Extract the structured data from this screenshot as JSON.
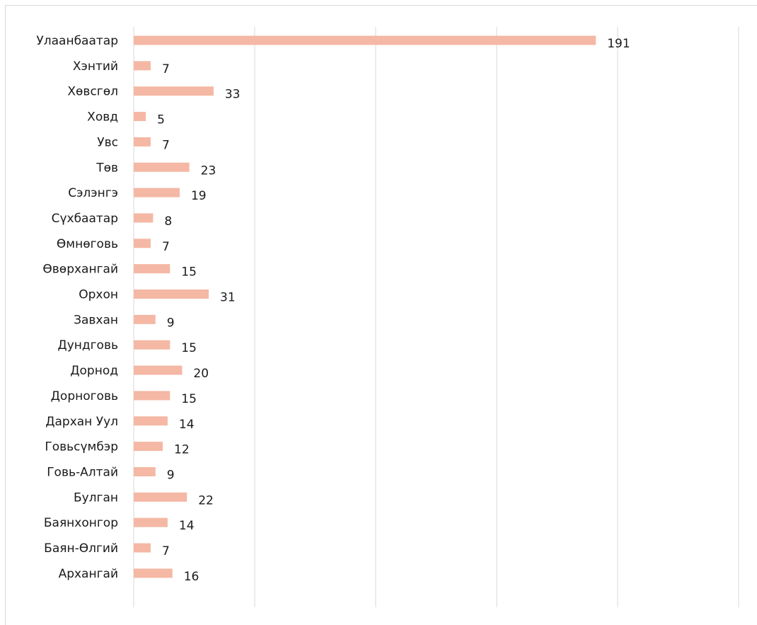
{
  "chart_data": {
    "type": "bar",
    "orientation": "horizontal",
    "categories": [
      "Улаанбаатар",
      "Хэнтий",
      "Хөвсгөл",
      "Ховд",
      "Увс",
      "Төв",
      "Сэлэнгэ",
      "Сүхбаатар",
      "Өмнөговь",
      "Өвөрхангай",
      "Орхон",
      "Завхан",
      "Дундговь",
      "Дорнод",
      "Дорноговь",
      "Дархан Уул",
      "Говьсүмбэр",
      "Говь-Алтай",
      "Булган",
      "Баянхонгор",
      "Баян-Өлгий",
      "Архангай"
    ],
    "values": [
      191,
      7,
      33,
      5,
      7,
      23,
      19,
      8,
      7,
      15,
      31,
      9,
      15,
      20,
      15,
      14,
      12,
      9,
      22,
      14,
      7,
      16
    ],
    "title": "",
    "xlabel": "",
    "ylabel": "",
    "xlim": [
      0,
      250
    ],
    "grid": true,
    "legend": "none",
    "bar_color": "#f4b8a4",
    "grid_color": "#d9d9d9"
  }
}
